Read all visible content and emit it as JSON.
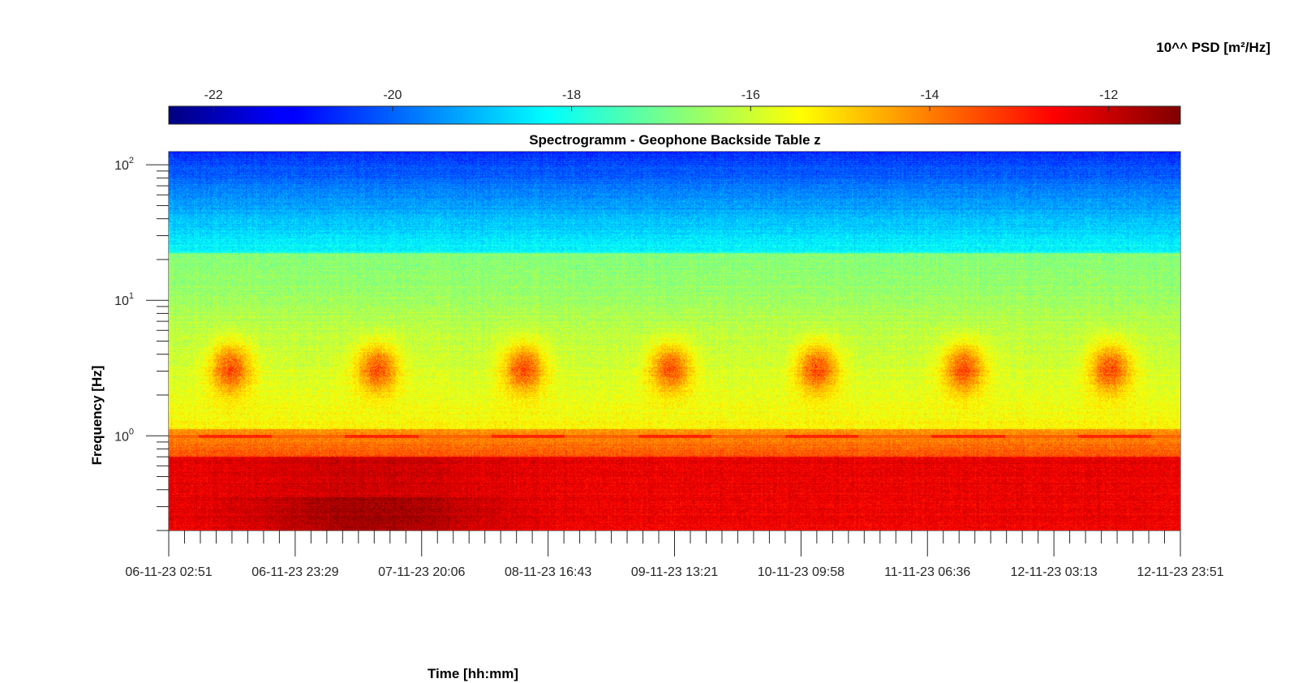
{
  "chart_data": {
    "type": "heatmap",
    "title": "Spectrogramm - Geophone Backside Table z",
    "xlabel": "Time [hh:mm]",
    "ylabel": "Frequency [Hz]",
    "y_scale": "log",
    "ylim": [
      0.2,
      125
    ],
    "y_ticks": [
      {
        "base": "10",
        "exp": "0",
        "value": 1
      },
      {
        "base": "10",
        "exp": "1",
        "value": 10
      },
      {
        "base": "10",
        "exp": "2",
        "value": 100
      }
    ],
    "x_ticks": [
      "06-11-23 02:51",
      "06-11-23 23:29",
      "07-11-23 20:06",
      "08-11-23 16:43",
      "09-11-23 13:21",
      "10-11-23 09:58",
      "11-11-23 06:36",
      "12-11-23 03:13",
      "12-11-23 23:51"
    ],
    "colorbar": {
      "label": "10^^ PSD [m²/Hz]",
      "range": [
        -22.5,
        -11.2
      ],
      "ticks": [
        -22,
        -20,
        -18,
        -16,
        -14,
        -12
      ],
      "colormap": "jet"
    },
    "observed_features": {
      "low_frequency_power_level_log10": -12.5,
      "high_frequency_power_level_log10": -20.5,
      "daily_activity_bands_hz": [
        2,
        6
      ],
      "daily_activity_peak_level_log10": -13.5,
      "line_near_1hz_level_log10": -13.0
    }
  }
}
